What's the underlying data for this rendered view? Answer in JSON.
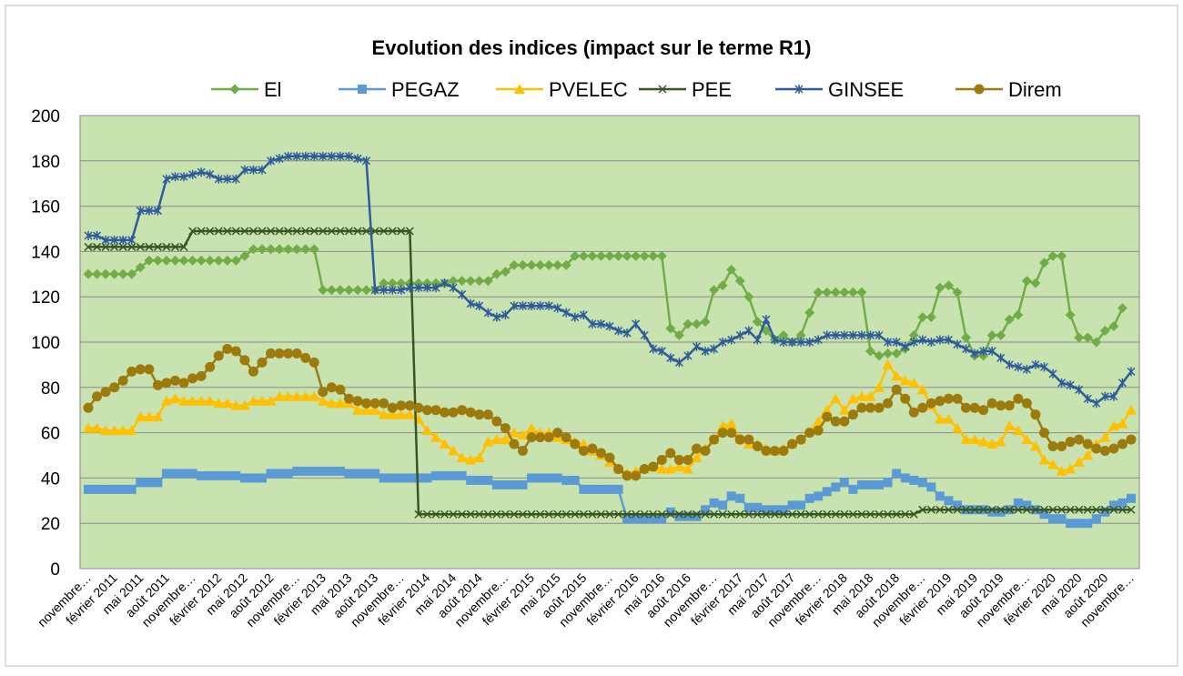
{
  "chart_data": {
    "type": "line",
    "title": "Evolution des indices (impact sur le terme R1)",
    "categories": [
      "novembre…",
      null,
      null,
      "février 2011",
      null,
      null,
      "mai 2011",
      null,
      null,
      "août 2011",
      null,
      null,
      "novembre…",
      null,
      null,
      "février 2012",
      null,
      null,
      "mai 2012",
      null,
      null,
      "août 2012",
      null,
      null,
      "novembre…",
      null,
      null,
      "février 2013",
      null,
      null,
      "mai 2013",
      null,
      null,
      "août 2013",
      null,
      null,
      "novembre…",
      null,
      null,
      "février 2014",
      null,
      null,
      "mai 2014",
      null,
      null,
      "août 2014",
      null,
      null,
      "novembre…",
      null,
      null,
      "février 2015",
      null,
      null,
      "mai 2015",
      null,
      null,
      "août 2015",
      null,
      null,
      "novembre…",
      null,
      null,
      "février 2016",
      null,
      null,
      "mai 2016",
      null,
      null,
      "août 2016",
      null,
      null,
      "novembre…",
      null,
      null,
      "février 2017",
      null,
      null,
      "mai 2017",
      null,
      null,
      "août 2017",
      null,
      null,
      "novembre…",
      null,
      null,
      "février 2018",
      null,
      null,
      "mai 2018",
      null,
      null,
      "août 2018",
      null,
      null,
      "novembre…",
      null,
      null,
      "février 2019",
      null,
      null,
      "mai 2019",
      null,
      null,
      "août 2019",
      null,
      null,
      "novembre…",
      null,
      null,
      "février 2020",
      null,
      null,
      "mai 2020",
      null,
      null,
      "août 2020",
      null,
      null,
      "novembre…"
    ],
    "ylim": [
      0,
      200
    ],
    "yticks": [
      0,
      20,
      40,
      60,
      80,
      100,
      120,
      140,
      160,
      180,
      200
    ],
    "grid": true,
    "legend": "top",
    "series": [
      {
        "name": "El",
        "color": "#70ad47",
        "marker": "diamond",
        "values": [
          130,
          130,
          130,
          130,
          130,
          130,
          133,
          136,
          136,
          136,
          136,
          136,
          136,
          136,
          136,
          136,
          136,
          136,
          138,
          141,
          141,
          141,
          141,
          141,
          141,
          141,
          141,
          123,
          123,
          123,
          123,
          123,
          123,
          123,
          126,
          126,
          126,
          126,
          126,
          126,
          126,
          126,
          127,
          127,
          127,
          127,
          127,
          130,
          131,
          134,
          134,
          134,
          134,
          134,
          134,
          134,
          138,
          138,
          138,
          138,
          138,
          138,
          138,
          138,
          138,
          138,
          138,
          106,
          103,
          108,
          108,
          109,
          123,
          125,
          132,
          127,
          120,
          109,
          105,
          101,
          103,
          100,
          103,
          113,
          122,
          122,
          122,
          122,
          122,
          122,
          96,
          94,
          95,
          95,
          97,
          103,
          111,
          111,
          124,
          125,
          122,
          102,
          94,
          94,
          103,
          103,
          110,
          112,
          127,
          126,
          135,
          138,
          138,
          112,
          102,
          102,
          100,
          105,
          107,
          115,
          null
        ]
      },
      {
        "name": "PEGAZ",
        "color": "#5b9bd5",
        "marker": "square",
        "values": [
          35,
          35,
          35,
          35,
          35,
          35,
          38,
          38,
          38,
          42,
          42,
          42,
          42,
          41,
          41,
          41,
          41,
          41,
          40,
          40,
          40,
          42,
          42,
          42,
          43,
          43,
          43,
          43,
          43,
          43,
          42,
          42,
          42,
          42,
          40,
          40,
          40,
          40,
          40,
          40,
          41,
          41,
          41,
          41,
          39,
          39,
          39,
          37,
          37,
          37,
          37,
          40,
          40,
          40,
          40,
          39,
          39,
          35,
          35,
          35,
          35,
          35,
          22,
          22,
          22,
          22,
          22,
          25,
          23,
          23,
          23,
          26,
          29,
          28,
          32,
          31,
          27,
          27,
          26,
          26,
          26,
          28,
          28,
          31,
          32,
          34,
          36,
          38,
          35,
          37,
          37,
          37,
          38,
          42,
          40,
          39,
          38,
          36,
          32,
          30,
          28,
          26,
          26,
          26,
          25,
          25,
          26,
          29,
          28,
          26,
          24,
          22,
          22,
          20,
          20,
          20,
          22,
          25,
          28,
          29,
          31
        ]
      },
      {
        "name": "PVELEC",
        "color": "#ffc000",
        "marker": "triangle",
        "values": [
          62,
          62,
          61,
          61,
          61,
          61,
          67,
          67,
          67,
          74,
          75,
          74,
          74,
          74,
          74,
          73,
          73,
          72,
          72,
          74,
          74,
          74,
          76,
          76,
          76,
          76,
          76,
          74,
          73,
          73,
          73,
          70,
          70,
          70,
          68,
          68,
          68,
          68,
          66,
          61,
          58,
          55,
          52,
          49,
          48,
          49,
          56,
          57,
          57,
          60,
          59,
          62,
          60,
          60,
          58,
          57,
          56,
          55,
          52,
          50,
          47,
          44,
          42,
          43,
          44,
          45,
          44,
          44,
          45,
          44,
          49,
          53,
          57,
          63,
          64,
          57,
          55,
          55,
          53,
          52,
          53,
          55,
          57,
          60,
          65,
          70,
          75,
          70,
          75,
          76,
          76,
          80,
          90,
          85,
          83,
          82,
          79,
          72,
          66,
          66,
          62,
          57,
          57,
          56,
          55,
          56,
          63,
          61,
          57,
          54,
          48,
          46,
          43,
          44,
          47,
          50,
          55,
          58,
          63,
          64,
          70
        ]
      },
      {
        "name": "PEE",
        "color": "#375623",
        "marker": "x",
        "values": [
          142,
          142,
          142,
          142,
          142,
          142,
          142,
          142,
          142,
          142,
          142,
          142,
          149,
          149,
          149,
          149,
          149,
          149,
          149,
          149,
          149,
          149,
          149,
          149,
          149,
          149,
          149,
          149,
          149,
          149,
          149,
          149,
          149,
          149,
          149,
          149,
          149,
          149,
          24,
          24,
          24,
          24,
          24,
          24,
          24,
          24,
          24,
          24,
          24,
          24,
          24,
          24,
          24,
          24,
          24,
          24,
          24,
          24,
          24,
          24,
          24,
          24,
          24,
          24,
          24,
          24,
          24,
          24,
          24,
          24,
          24,
          24,
          24,
          24,
          24,
          24,
          24,
          24,
          24,
          24,
          24,
          24,
          24,
          24,
          24,
          24,
          24,
          24,
          24,
          24,
          24,
          24,
          24,
          24,
          24,
          24,
          26,
          26,
          26,
          26,
          26,
          26,
          26,
          26,
          26,
          26,
          26,
          26,
          26,
          26,
          26,
          26,
          26,
          26,
          26,
          26,
          26,
          26,
          26,
          26,
          26
        ]
      },
      {
        "name": "GINSEE",
        "color": "#2e5c9a",
        "marker": "asterisk",
        "values": [
          147,
          147,
          145,
          145,
          145,
          145,
          158,
          158,
          158,
          172,
          173,
          173,
          174,
          175,
          174,
          172,
          172,
          172,
          176,
          176,
          176,
          180,
          181,
          182,
          182,
          182,
          182,
          182,
          182,
          182,
          182,
          181,
          180,
          123,
          123,
          123,
          123,
          124,
          124,
          124,
          124,
          126,
          124,
          121,
          117,
          116,
          113,
          111,
          112,
          116,
          116,
          116,
          116,
          116,
          115,
          113,
          111,
          112,
          108,
          108,
          107,
          105,
          104,
          108,
          103,
          97,
          96,
          93,
          91,
          94,
          98,
          96,
          97,
          100,
          101,
          103,
          105,
          101,
          110,
          101,
          100,
          100,
          100,
          100,
          101,
          103,
          103,
          103,
          103,
          103,
          103,
          103,
          100,
          100,
          98,
          100,
          101,
          100,
          101,
          101,
          99,
          97,
          95,
          96,
          96,
          93,
          90,
          89,
          88,
          90,
          89,
          86,
          82,
          81,
          79,
          75,
          73,
          76,
          76,
          82,
          87
        ]
      },
      {
        "name": "Direm",
        "color": "#9c7a0c",
        "marker": "circle",
        "values": [
          71,
          76,
          78,
          80,
          83,
          87,
          88,
          88,
          81,
          82,
          83,
          82,
          84,
          85,
          89,
          94,
          97,
          96,
          92,
          87,
          91,
          95,
          95,
          95,
          95,
          93,
          91,
          78,
          80,
          79,
          75,
          74,
          73,
          73,
          73,
          71,
          72,
          72,
          71,
          70,
          70,
          69,
          69,
          70,
          69,
          68,
          68,
          65,
          62,
          55,
          52,
          58,
          58,
          58,
          60,
          58,
          55,
          52,
          53,
          51,
          49,
          44,
          41,
          41,
          44,
          45,
          48,
          51,
          48,
          48,
          53,
          52,
          57,
          60,
          60,
          57,
          57,
          54,
          52,
          52,
          52,
          55,
          57,
          60,
          61,
          67,
          65,
          65,
          68,
          71,
          71,
          71,
          73,
          79,
          75,
          69,
          71,
          73,
          74,
          75,
          75,
          71,
          71,
          70,
          73,
          72,
          72,
          75,
          73,
          68,
          60,
          54,
          54,
          56,
          57,
          55,
          53,
          52,
          53,
          55,
          57
        ]
      }
    ]
  }
}
